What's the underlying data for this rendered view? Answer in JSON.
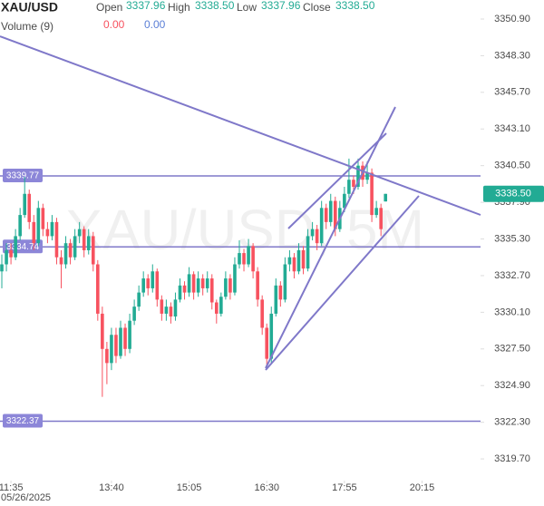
{
  "chart_data": {
    "type": "candlestick",
    "symbol": "XAU/USD",
    "watermark": "XAU/USD, 5M",
    "header": {
      "open_label": "Open",
      "open": "3337.96",
      "high_label": "High",
      "high": "3338.50",
      "low_label": "Low",
      "low": "3337.96",
      "close_label": "Close",
      "close": "3338.50"
    },
    "volume": {
      "label": "Volume (9)",
      "values": [
        "0.00",
        "0.00"
      ]
    },
    "date_label": "05/26/2025",
    "up_color": "#22ab94",
    "down_color": "#f7525f",
    "line_color": "#7f78c9",
    "xlim": [
      -0.4,
      104.8
    ],
    "xticks": [
      {
        "value": 2,
        "label": "11:35"
      },
      {
        "value": 24,
        "label": "13:40"
      },
      {
        "value": 41,
        "label": "15:05"
      },
      {
        "value": 58,
        "label": "16:30"
      },
      {
        "value": 75,
        "label": "17:55"
      },
      {
        "value": 92,
        "label": "20:15"
      }
    ],
    "ylim": [
      3318.16,
      3352.25
    ],
    "yticks": [
      {
        "value": 3350.9,
        "label": "3350.90"
      },
      {
        "value": 3348.3,
        "label": "3348.30"
      },
      {
        "value": 3345.7,
        "label": "3345.70"
      },
      {
        "value": 3343.1,
        "label": "3343.10"
      },
      {
        "value": 3340.5,
        "label": "3340.50"
      },
      {
        "value": 3337.9,
        "label": "3337.90"
      },
      {
        "value": 3335.3,
        "label": "3335.30"
      },
      {
        "value": 3332.7,
        "label": "3332.70"
      },
      {
        "value": 3330.1,
        "label": "3330.10"
      },
      {
        "value": 3327.5,
        "label": "3327.50"
      },
      {
        "value": 3324.9,
        "label": "3324.90"
      },
      {
        "value": 3322.3,
        "label": "3322.30"
      },
      {
        "value": 3319.7,
        "label": "3319.70"
      }
    ],
    "hlines": [
      3339.77,
      3334.74,
      3322.37
    ],
    "last_price": {
      "value": 3338.5,
      "label": "3338.50"
    },
    "open": [
      3333.0,
      3333.5,
      3334.5,
      3334.0,
      3335.5,
      3337.0,
      3338.5,
      3336.5,
      3335.0,
      3337.5,
      3336.0,
      3335.5,
      3336.5,
      3334.0,
      3333.5,
      3335.0,
      3334.0,
      3335.5,
      3336.0,
      3334.5,
      3335.5,
      3333.5,
      3330.0,
      3327.5,
      3326.5,
      3328.5,
      3327.0,
      3329.0,
      3327.5,
      3329.5,
      3330.5,
      3331.5,
      3332.5,
      3331.8,
      3333.0,
      3331.0,
      3330.0,
      3330.5,
      3329.8,
      3331.0,
      3332.0,
      3331.5,
      3332.8,
      3331.5,
      3332.5,
      3331.8,
      3332.5,
      3330.8,
      3330.0,
      3331.2,
      3332.5,
      3331.5,
      3333.5,
      3334.3,
      3333.5,
      3334.8,
      3333.0,
      3331.0,
      3329.0,
      3326.8,
      3330.0,
      3332.0,
      3331.0,
      3333.5,
      3334.0,
      3333.0,
      3334.5,
      3333.2,
      3335.5,
      3336.0,
      3335.0,
      3337.5,
      3336.5,
      3338.0,
      3336.0,
      3337.5,
      3338.5,
      3339.5,
      3339.0,
      3340.5,
      3339.5,
      3340.0,
      3337.0,
      3337.5,
      3337.96
    ],
    "high": [
      3334.2,
      3335.0,
      3335.0,
      3336.0,
      3337.5,
      3339.7,
      3338.8,
      3337.0,
      3338.0,
      3337.8,
      3336.5,
      3337.0,
      3336.8,
      3334.5,
      3335.5,
      3335.3,
      3336.0,
      3336.5,
      3336.2,
      3336.0,
      3335.8,
      3333.8,
      3330.5,
      3328.0,
      3329.0,
      3329.0,
      3329.5,
      3329.3,
      3330.0,
      3331.0,
      3332.0,
      3333.0,
      3332.8,
      3333.5,
      3333.2,
      3331.3,
      3331.0,
      3330.8,
      3331.5,
      3332.5,
      3332.3,
      3333.3,
      3333.0,
      3333.0,
      3332.8,
      3333.0,
      3332.8,
      3331.0,
      3331.5,
      3333.0,
      3332.8,
      3334.0,
      3335.2,
      3334.6,
      3335.3,
      3335.0,
      3333.3,
      3331.3,
      3329.3,
      3330.5,
      3332.5,
      3332.3,
      3334.0,
      3334.5,
      3334.3,
      3335.0,
      3334.8,
      3336.0,
      3336.5,
      3336.3,
      3338.0,
      3337.8,
      3338.5,
      3338.3,
      3338.0,
      3339.0,
      3341.0,
      3339.8,
      3341.0,
      3340.8,
      3340.8,
      3340.3,
      3338.0,
      3337.8,
      3338.5
    ],
    "low": [
      3331.8,
      3333.0,
      3333.5,
      3333.8,
      3335.2,
      3336.8,
      3336.0,
      3334.5,
      3334.8,
      3335.5,
      3335.0,
      3335.2,
      3333.5,
      3331.8,
      3333.2,
      3333.5,
      3333.8,
      3335.0,
      3334.0,
      3334.2,
      3333.0,
      3329.5,
      3324.1,
      3325.0,
      3326.0,
      3326.5,
      3326.8,
      3327.0,
      3327.2,
      3329.2,
      3330.2,
      3331.2,
      3331.3,
      3331.5,
      3330.5,
      3329.5,
      3329.5,
      3329.3,
      3329.5,
      3330.8,
      3331.0,
      3331.2,
      3331.0,
      3331.2,
      3331.3,
      3331.5,
      3330.3,
      3329.3,
      3329.8,
      3331.0,
      3331.0,
      3331.3,
      3333.2,
      3333.0,
      3333.3,
      3332.5,
      3330.5,
      3328.5,
      3326.3,
      3326.5,
      3329.8,
      3330.5,
      3330.8,
      3333.0,
      3332.5,
      3332.8,
      3332.8,
      3333.0,
      3335.2,
      3334.5,
      3334.8,
      3336.0,
      3336.2,
      3335.5,
      3335.8,
      3337.2,
      3338.2,
      3338.5,
      3338.8,
      3339.0,
      3339.2,
      3336.5,
      3336.8,
      3335.5,
      3337.96
    ],
    "close": [
      3333.5,
      3334.5,
      3334.0,
      3335.5,
      3337.0,
      3338.5,
      3336.5,
      3335.0,
      3337.5,
      3336.0,
      3335.5,
      3336.5,
      3334.0,
      3333.5,
      3335.0,
      3334.0,
      3335.5,
      3336.0,
      3334.5,
      3335.5,
      3333.5,
      3330.0,
      3327.5,
      3326.5,
      3328.5,
      3327.0,
      3329.0,
      3327.5,
      3329.5,
      3330.5,
      3331.5,
      3332.5,
      3331.8,
      3333.0,
      3331.0,
      3330.0,
      3330.5,
      3329.8,
      3331.0,
      3332.0,
      3331.5,
      3332.8,
      3331.5,
      3332.5,
      3331.8,
      3332.5,
      3330.8,
      3330.0,
      3331.2,
      3332.5,
      3331.5,
      3333.5,
      3334.3,
      3333.5,
      3334.8,
      3333.0,
      3331.0,
      3329.0,
      3326.8,
      3330.0,
      3332.0,
      3331.0,
      3333.5,
      3334.0,
      3333.0,
      3334.5,
      3333.2,
      3335.5,
      3336.0,
      3335.0,
      3337.5,
      3336.5,
      3338.0,
      3336.0,
      3337.5,
      3338.5,
      3339.5,
      3339.0,
      3340.5,
      3339.5,
      3340.0,
      3337.0,
      3337.5,
      3336.0,
      3338.5
    ]
  }
}
